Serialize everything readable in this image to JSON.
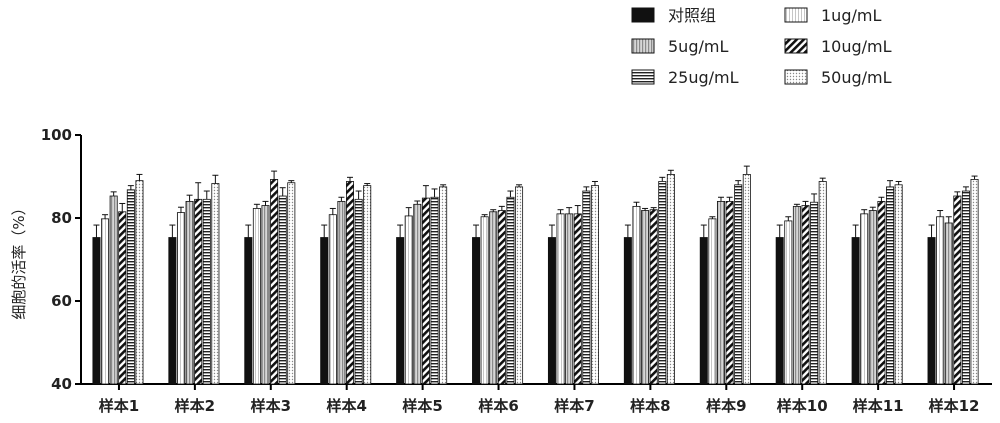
{
  "chart_data": {
    "type": "bar",
    "ylabel": "细胞的活率（%）",
    "ylim": [
      40,
      100
    ],
    "yticks": [
      40,
      60,
      80,
      100
    ],
    "categories": [
      "样本1",
      "样本2",
      "样本3",
      "样本4",
      "样本5",
      "样本6",
      "样本7",
      "样本8",
      "样本9",
      "样本10",
      "样本11",
      "样本12"
    ],
    "legend_position": "top-right",
    "series": [
      {
        "name": "对照组",
        "pattern": "solid",
        "values": [
          75.3,
          75.3,
          75.3,
          75.3,
          75.3,
          75.3,
          75.3,
          75.3,
          75.3,
          75.3,
          75.3,
          75.3
        ],
        "errors": [
          3,
          3,
          3,
          3,
          3,
          3,
          3,
          3,
          3,
          3,
          3,
          3
        ]
      },
      {
        "name": "1ug/mL",
        "pattern": "white-vstripe",
        "values": [
          79.8,
          81.3,
          82.3,
          80.8,
          80.5,
          80.3,
          81,
          82.8,
          79.8,
          79.3,
          81,
          80.3
        ],
        "errors": [
          1,
          1.3,
          1,
          1.5,
          2,
          0.5,
          1,
          1,
          0.5,
          1,
          1,
          1.5
        ]
      },
      {
        "name": "5ug/mL",
        "pattern": "gray-vstripe",
        "values": [
          85.3,
          84,
          83,
          84,
          83.3,
          81.5,
          81,
          81.8,
          84,
          82.8,
          81.8,
          78.8
        ],
        "errors": [
          1,
          1.5,
          1,
          1,
          0.8,
          0.5,
          1.5,
          0.5,
          1,
          0.5,
          0.8,
          1.5
        ]
      },
      {
        "name": "10ug/mL",
        "pattern": "diagonal",
        "values": [
          81.5,
          84.5,
          89.3,
          88.8,
          84.8,
          81.8,
          81,
          82,
          84,
          83,
          84,
          85.3
        ],
        "errors": [
          2,
          4,
          2,
          1,
          3,
          1,
          2,
          0.5,
          1,
          1,
          1,
          1
        ]
      },
      {
        "name": "25ug/mL",
        "pattern": "hstripe",
        "values": [
          86.8,
          84.5,
          85.3,
          84.5,
          85,
          85,
          86.5,
          88.8,
          88,
          83.8,
          87.5,
          86.5
        ],
        "errors": [
          1,
          2,
          2,
          2,
          2,
          1.5,
          1,
          1,
          1,
          2,
          1.5,
          1
        ]
      },
      {
        "name": "50ug/mL",
        "pattern": "dotted",
        "values": [
          89,
          88.3,
          88.5,
          87.8,
          87.5,
          87.5,
          87.8,
          90.5,
          90.5,
          88.8,
          88,
          89.3
        ],
        "errors": [
          1.5,
          2,
          0.5,
          0.5,
          0.5,
          0.5,
          1,
          1,
          2,
          0.8,
          0.8,
          0.8
        ]
      }
    ]
  }
}
